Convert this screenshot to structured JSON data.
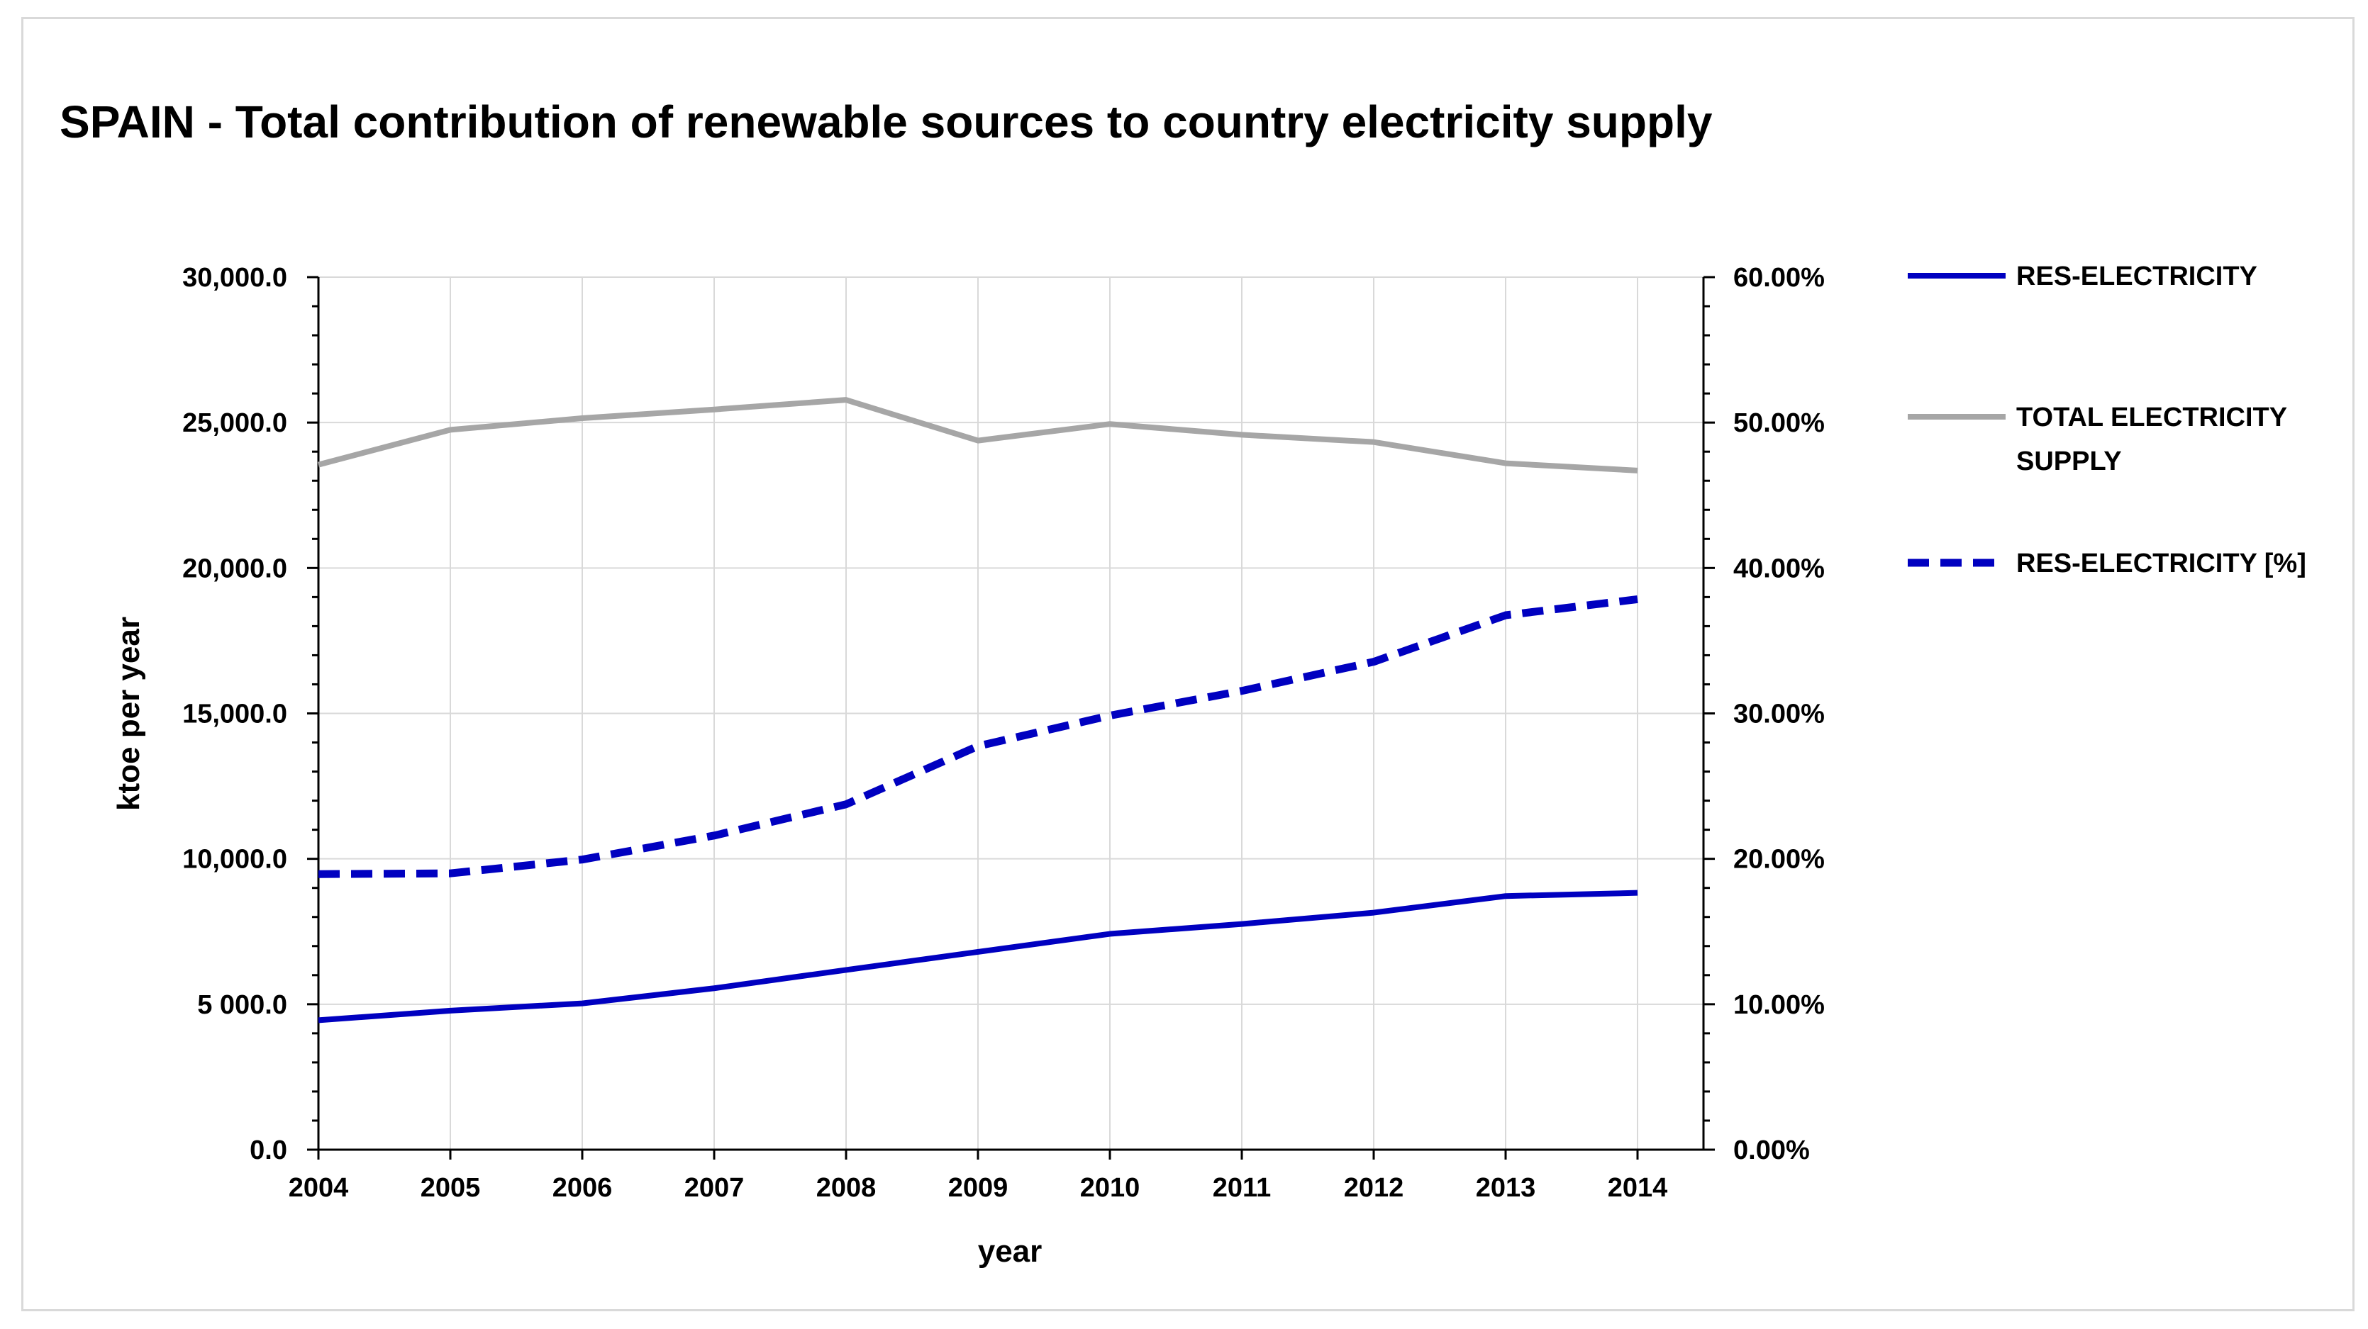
{
  "chart_data": {
    "type": "line",
    "title": "SPAIN - Total contribution of renewable sources to country electricity supply",
    "xlabel": "year",
    "ylabel": "ktoe per year",
    "categories": [
      "2004",
      "2005",
      "2006",
      "2007",
      "2008",
      "2009",
      "2010",
      "2011",
      "2012",
      "2013",
      "2014"
    ],
    "ylim": [
      0,
      30000
    ],
    "y2lim": [
      0,
      60
    ],
    "y_ticks": [
      {
        "value": 0,
        "label": "0.0"
      },
      {
        "value": 5000,
        "label": "5 000.0"
      },
      {
        "value": 10000,
        "label": "10,000.0"
      },
      {
        "value": 15000,
        "label": "15,000.0"
      },
      {
        "value": 20000,
        "label": "20,000.0"
      },
      {
        "value": 25000,
        "label": "25,000.0"
      },
      {
        "value": 30000,
        "label": "30,000.0"
      }
    ],
    "y2_ticks": [
      {
        "value": 0,
        "label": "0.00%"
      },
      {
        "value": 10,
        "label": "10.00%"
      },
      {
        "value": 20,
        "label": "20.00%"
      },
      {
        "value": 30,
        "label": "30.00%"
      },
      {
        "value": 40,
        "label": "40.00%"
      },
      {
        "value": 50,
        "label": "50.00%"
      },
      {
        "value": 60,
        "label": "60.00%"
      }
    ],
    "grid": true,
    "legend_position": "right",
    "series": [
      {
        "name": "RES-ELECTRICITY",
        "axis": "left",
        "color": "#0000c0",
        "style": "solid",
        "values": [
          4450,
          4780,
          5030,
          5550,
          6180,
          6800,
          7420,
          7760,
          8150,
          8720,
          8830
        ]
      },
      {
        "name": "TOTAL ELECTRICITY SUPPLY",
        "legend_lines": [
          "TOTAL ELECTRICITY",
          "SUPPLY"
        ],
        "axis": "left",
        "color": "#a6a6a6",
        "style": "solid",
        "values": [
          23550,
          24750,
          25150,
          25450,
          25780,
          24380,
          24950,
          24580,
          24330,
          23600,
          23350
        ]
      },
      {
        "name": "RES-ELECTRICITY [%]",
        "axis": "right",
        "color": "#0000c0",
        "style": "dashed",
        "values": [
          18.95,
          19.0,
          19.95,
          21.6,
          23.75,
          27.75,
          29.85,
          31.55,
          33.55,
          36.75,
          37.85
        ]
      }
    ]
  }
}
